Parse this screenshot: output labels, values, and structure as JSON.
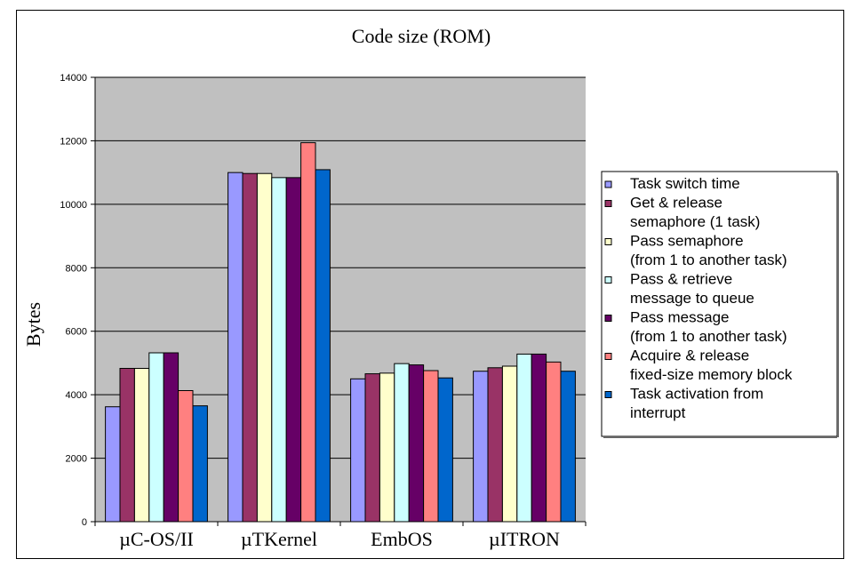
{
  "chart_data": {
    "type": "bar",
    "title": "Code size (ROM)",
    "xlabel": "",
    "ylabel": "Bytes",
    "ylim": [
      0,
      14000
    ],
    "yticks": [
      0,
      2000,
      4000,
      6000,
      8000,
      10000,
      12000,
      14000
    ],
    "ytick_labels": [
      "0",
      "2000",
      "4000",
      "6000",
      "8000",
      "10000",
      "12000",
      "14000"
    ],
    "grid": true,
    "legend_position": "right",
    "categories": [
      "µC-OS/II",
      "µTKernel",
      "EmbOS",
      "µITRON"
    ],
    "series": [
      {
        "name": "Task switch time",
        "legend_lines": [
          "Task switch time"
        ],
        "color": "#9999ff",
        "values": [
          3620,
          11000,
          4500,
          4740
        ]
      },
      {
        "name": "Get & release semaphore (1 task)",
        "legend_lines": [
          "Get & release",
          "semaphore (1 task)"
        ],
        "color": "#993366",
        "values": [
          4830,
          10970,
          4660,
          4850
        ]
      },
      {
        "name": "Pass semaphore (from 1 to another task)",
        "legend_lines": [
          "Pass semaphore",
          "(from 1 to another task)"
        ],
        "color": "#ffffcc",
        "values": [
          4830,
          10970,
          4680,
          4900
        ]
      },
      {
        "name": "Pass & retrieve message to queue",
        "legend_lines": [
          "Pass & retrieve",
          "message to queue"
        ],
        "color": "#ccffff",
        "values": [
          5320,
          10840,
          4980,
          5280
        ]
      },
      {
        "name": "Pass message (from 1 to another task)",
        "legend_lines": [
          "Pass message",
          "(from 1 to another task)"
        ],
        "color": "#660066",
        "values": [
          5320,
          10840,
          4940,
          5280
        ]
      },
      {
        "name": "Acquire & release fixed-size memory block",
        "legend_lines": [
          "Acquire & release",
          "fixed-size memory block"
        ],
        "color": "#ff8080",
        "values": [
          4130,
          11940,
          4760,
          5030
        ]
      },
      {
        "name": "Task activation from interrupt",
        "legend_lines": [
          "Task activation from",
          "interrupt"
        ],
        "color": "#0066cc",
        "values": [
          3650,
          11090,
          4530,
          4740
        ]
      }
    ],
    "colors": {
      "plot_background": "#c0c0c0",
      "gridline": "#000000"
    }
  }
}
